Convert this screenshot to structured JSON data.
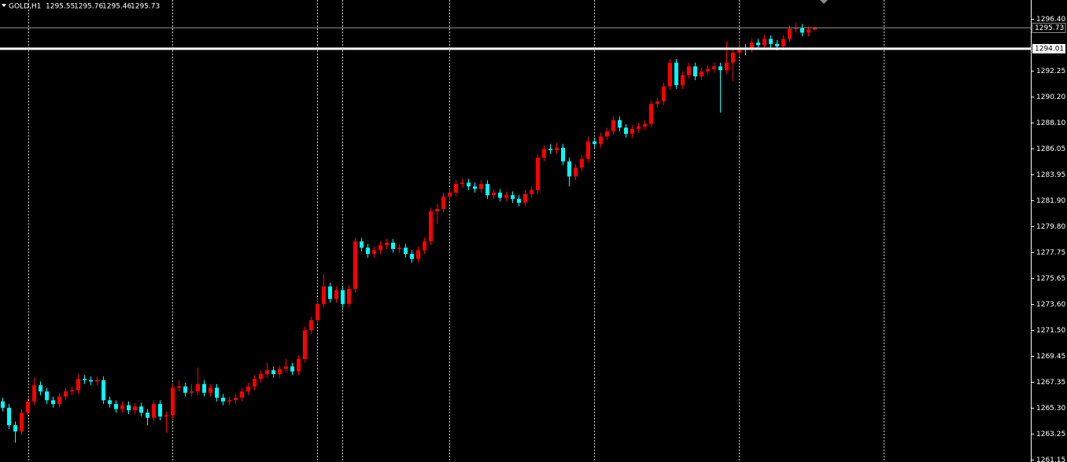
{
  "chart_data": {
    "type": "candlestick",
    "symbol": "GOLD,H1",
    "up_color": "#ff0000",
    "down_color": "#00ffff",
    "grid": true,
    "open": [
      1265.8,
      1265.3,
      1263.9,
      1263.4,
      1264.9,
      1265.8,
      1267.1,
      1266.6,
      1265.9,
      1265.6,
      1266.2,
      1266.6,
      1266.7,
      1267.6,
      1267.5,
      1267.4,
      1267.5,
      1265.9,
      1265.6,
      1265.2,
      1265.5,
      1265.1,
      1265.4,
      1264.9,
      1264.5,
      1265.6,
      1264.6,
      1264.7,
      1266.9,
      1267.0,
      1266.5,
      1266.6,
      1267.2,
      1266.5,
      1266.9,
      1266.1,
      1265.8,
      1265.9,
      1266.1,
      1266.6,
      1267.0,
      1267.6,
      1268.0,
      1268.3,
      1268.0,
      1268.4,
      1268.6,
      1268.2,
      1269.2,
      1271.5,
      1272.3,
      1273.6,
      1275.0,
      1274.0,
      1274.7,
      1273.6,
      1274.8,
      1278.6,
      1278.1,
      1277.6,
      1277.9,
      1278.3,
      1278.5,
      1278.0,
      1278.1,
      1277.6,
      1277.2,
      1277.9,
      1278.6,
      1281.0,
      1281.2,
      1282.2,
      1282.5,
      1283.2,
      1283.3,
      1283.0,
      1282.8,
      1283.2,
      1282.3,
      1282.5,
      1282.1,
      1282.3,
      1282.0,
      1281.7,
      1282.4,
      1282.7,
      1285.3,
      1286.0,
      1285.9,
      1286.1,
      1285.0,
      1283.8,
      1284.5,
      1285.2,
      1286.6,
      1286.4,
      1287.0,
      1287.4,
      1288.3,
      1287.7,
      1287.2,
      1287.6,
      1287.8,
      1288.0,
      1289.6,
      1289.8,
      1291.0,
      1292.9,
      1291.1,
      1291.9,
      1292.6,
      1291.8,
      1292.2,
      1292.4,
      1292.6,
      1292.3,
      1292.9,
      1293.7,
      1294.1,
      1294.0,
      1294.5,
      1294.3,
      1294.8,
      1294.4,
      1294.2,
      1294.8,
      1295.6,
      1295.7,
      1295.3,
      1295.55
    ],
    "high": [
      1266.1,
      1265.6,
      1264.2,
      1265.2,
      1266.1,
      1267.7,
      1267.4,
      1266.9,
      1266.2,
      1266.5,
      1266.9,
      1267.0,
      1268.0,
      1267.9,
      1267.8,
      1267.8,
      1267.8,
      1266.2,
      1265.9,
      1265.8,
      1265.8,
      1265.7,
      1265.7,
      1265.2,
      1265.9,
      1265.9,
      1265.0,
      1267.2,
      1267.5,
      1267.3,
      1267.2,
      1268.5,
      1267.5,
      1267.2,
      1267.2,
      1266.4,
      1266.2,
      1266.4,
      1266.9,
      1267.3,
      1267.9,
      1268.3,
      1268.9,
      1268.6,
      1268.7,
      1269.2,
      1268.9,
      1269.5,
      1271.8,
      1272.6,
      1274.0,
      1276.0,
      1275.3,
      1275.0,
      1275.0,
      1275.1,
      1278.9,
      1278.9,
      1278.4,
      1278.2,
      1278.6,
      1278.8,
      1278.8,
      1278.4,
      1278.4,
      1277.9,
      1278.2,
      1278.9,
      1281.3,
      1281.6,
      1282.5,
      1282.8,
      1283.5,
      1283.6,
      1283.6,
      1283.3,
      1283.5,
      1283.5,
      1282.8,
      1282.8,
      1282.6,
      1282.6,
      1282.3,
      1282.7,
      1283.0,
      1285.6,
      1286.3,
      1286.4,
      1286.5,
      1286.4,
      1285.3,
      1284.8,
      1285.5,
      1287.0,
      1286.9,
      1287.3,
      1287.7,
      1288.6,
      1288.6,
      1288.0,
      1287.9,
      1288.1,
      1288.3,
      1289.9,
      1290.1,
      1291.3,
      1293.2,
      1293.2,
      1292.2,
      1292.9,
      1292.9,
      1292.5,
      1292.7,
      1292.9,
      1292.9,
      1294.6,
      1294.0,
      1294.6,
      1294.4,
      1294.8,
      1294.8,
      1295.1,
      1295.1,
      1294.7,
      1295.1,
      1295.9,
      1296.1,
      1296.0,
      1295.8,
      1295.76
    ],
    "low": [
      1265.0,
      1263.6,
      1262.5,
      1263.1,
      1264.6,
      1265.5,
      1266.3,
      1265.6,
      1265.3,
      1265.3,
      1265.9,
      1266.3,
      1266.4,
      1267.2,
      1267.1,
      1267.1,
      1265.6,
      1265.3,
      1264.9,
      1264.9,
      1264.8,
      1264.8,
      1264.6,
      1263.9,
      1264.2,
      1264.3,
      1263.3,
      1264.4,
      1266.6,
      1266.2,
      1266.2,
      1266.3,
      1266.2,
      1266.2,
      1265.8,
      1265.5,
      1265.5,
      1265.6,
      1265.8,
      1266.3,
      1266.7,
      1267.3,
      1267.7,
      1267.7,
      1267.7,
      1268.1,
      1267.9,
      1267.9,
      1268.9,
      1271.2,
      1272.0,
      1273.3,
      1273.7,
      1273.7,
      1273.3,
      1273.3,
      1274.5,
      1277.8,
      1277.3,
      1277.3,
      1277.6,
      1278.0,
      1277.7,
      1277.7,
      1277.3,
      1276.9,
      1276.9,
      1277.6,
      1278.3,
      1280.0,
      1280.9,
      1281.9,
      1282.2,
      1282.9,
      1282.7,
      1282.5,
      1282.5,
      1282.0,
      1282.0,
      1281.8,
      1281.8,
      1281.7,
      1281.4,
      1281.4,
      1282.1,
      1282.4,
      1285.0,
      1285.6,
      1285.6,
      1284.7,
      1283.0,
      1283.5,
      1284.2,
      1284.9,
      1286.1,
      1286.1,
      1286.7,
      1287.1,
      1287.4,
      1286.9,
      1286.9,
      1287.3,
      1287.5,
      1287.7,
      1289.3,
      1289.5,
      1290.7,
      1290.8,
      1290.8,
      1291.6,
      1291.5,
      1291.5,
      1291.9,
      1292.1,
      1288.9,
      1292.0,
      1291.4,
      1293.4,
      1293.5,
      1293.7,
      1294.0,
      1294.0,
      1294.1,
      1293.9,
      1293.9,
      1294.5,
      1295.3,
      1295.0,
      1295.0,
      1295.46
    ],
    "close": [
      1265.3,
      1263.9,
      1263.4,
      1264.9,
      1265.8,
      1267.1,
      1266.6,
      1265.9,
      1265.6,
      1266.2,
      1266.6,
      1266.7,
      1267.6,
      1267.5,
      1267.4,
      1267.5,
      1265.9,
      1265.6,
      1265.2,
      1265.5,
      1265.1,
      1265.4,
      1264.9,
      1264.5,
      1265.6,
      1264.6,
      1264.7,
      1266.9,
      1267.0,
      1266.5,
      1266.6,
      1267.2,
      1266.5,
      1266.9,
      1266.1,
      1265.8,
      1265.9,
      1266.1,
      1266.6,
      1267.0,
      1267.6,
      1268.0,
      1268.3,
      1268.0,
      1268.4,
      1268.6,
      1268.2,
      1269.2,
      1271.5,
      1272.3,
      1273.6,
      1275.0,
      1274.0,
      1274.7,
      1273.6,
      1274.8,
      1278.6,
      1278.1,
      1277.6,
      1277.9,
      1278.3,
      1278.5,
      1278.0,
      1278.1,
      1277.6,
      1277.2,
      1277.9,
      1278.6,
      1281.0,
      1281.2,
      1282.2,
      1282.5,
      1283.2,
      1283.3,
      1283.0,
      1282.8,
      1283.2,
      1282.3,
      1282.5,
      1282.1,
      1282.3,
      1282.0,
      1281.7,
      1282.4,
      1282.7,
      1285.3,
      1286.0,
      1285.9,
      1286.1,
      1285.0,
      1283.8,
      1284.5,
      1285.2,
      1286.6,
      1286.4,
      1287.0,
      1287.4,
      1288.3,
      1287.7,
      1287.2,
      1287.6,
      1287.8,
      1288.0,
      1289.6,
      1289.8,
      1291.0,
      1292.9,
      1291.1,
      1291.9,
      1292.6,
      1291.8,
      1292.2,
      1292.4,
      1292.6,
      1292.3,
      1292.9,
      1293.7,
      1294.1,
      1294.0,
      1294.5,
      1294.3,
      1294.8,
      1294.4,
      1294.2,
      1294.8,
      1295.6,
      1295.7,
      1295.3,
      1295.55,
      1295.73
    ],
    "ylim": [
      1260.96,
      1297.91
    ],
    "yticks": [
      {
        "value": 1296.4,
        "label": "1296.40"
      },
      {
        "value": 1292.25,
        "label": "1292.25"
      },
      {
        "value": 1290.2,
        "label": "1290.20"
      },
      {
        "value": 1288.1,
        "label": "1288.10"
      },
      {
        "value": 1286.05,
        "label": "1286.05"
      },
      {
        "value": 1283.95,
        "label": "1283.95"
      },
      {
        "value": 1281.9,
        "label": "1281.90"
      },
      {
        "value": 1279.8,
        "label": "1279.80"
      },
      {
        "value": 1277.75,
        "label": "1277.75"
      },
      {
        "value": 1275.65,
        "label": "1275.65"
      },
      {
        "value": 1273.6,
        "label": "1273.60"
      },
      {
        "value": 1271.5,
        "label": "1271.50"
      },
      {
        "value": 1269.45,
        "label": "1269.45"
      },
      {
        "value": 1267.35,
        "label": "1267.35"
      },
      {
        "value": 1265.3,
        "label": "1265.30"
      },
      {
        "value": 1263.25,
        "label": "1263.25"
      },
      {
        "value": 1261.15,
        "label": "1261.15"
      }
    ],
    "hline": 1294.01
  }
}
